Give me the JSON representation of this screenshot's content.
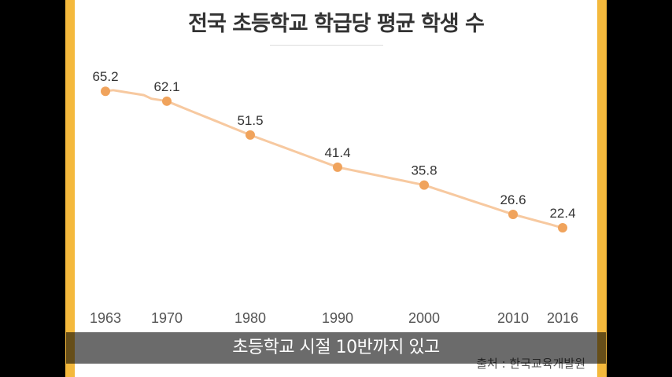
{
  "chart_data": {
    "type": "line",
    "title": "전국 초등학교 학급당 평균 학생 수",
    "x": [
      1963,
      1970,
      1980,
      1990,
      2000,
      2010,
      2016
    ],
    "x_tick_labels": [
      "1963",
      "1970",
      "1980",
      "1990",
      "2000",
      "2010",
      "2016"
    ],
    "series": [
      {
        "values": [
          65.2,
          62.1,
          51.5,
          41.4,
          35.8,
          26.6,
          22.4
        ],
        "value_labels": [
          "65.2",
          "62.1",
          "51.5",
          "41.4",
          "35.8",
          "26.6",
          "22.4"
        ]
      }
    ],
    "line_color": "#f7c9a0",
    "marker_color": "#f0a35c",
    "grid": false,
    "legend": "none",
    "source": "출처 : 한국교육개발원"
  },
  "subtitle": "초등학교 시절 10반까지 있고",
  "colors": {
    "frame": "#f4b93c",
    "panel": "#ffffff",
    "title_text": "#333333"
  }
}
